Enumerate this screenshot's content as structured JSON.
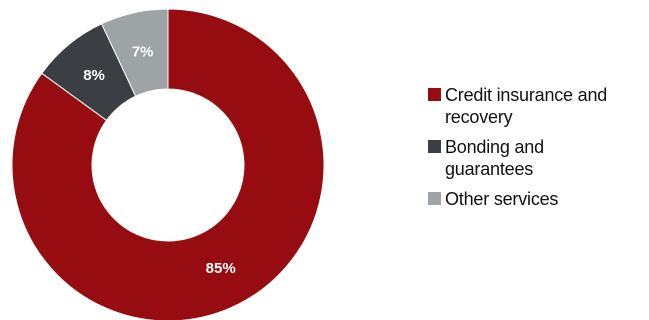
{
  "chart_data": {
    "type": "pie",
    "donut": true,
    "title": "",
    "categories": [
      "Credit insurance and recovery",
      "Bonding and guarantees",
      "Other services"
    ],
    "values": [
      85,
      8,
      7
    ],
    "labels": [
      "85%",
      "8%",
      "7%"
    ],
    "colors": [
      "#960c10",
      "#3b3f43",
      "#9ea3a6"
    ],
    "legend_position": "right"
  },
  "legend": {
    "items": [
      {
        "label": "Credit insurance and recovery",
        "color": "#960c10"
      },
      {
        "label": "Bonding and guarantees",
        "color": "#3b3f43"
      },
      {
        "label": "Other services",
        "color": "#9ea3a6"
      }
    ]
  }
}
